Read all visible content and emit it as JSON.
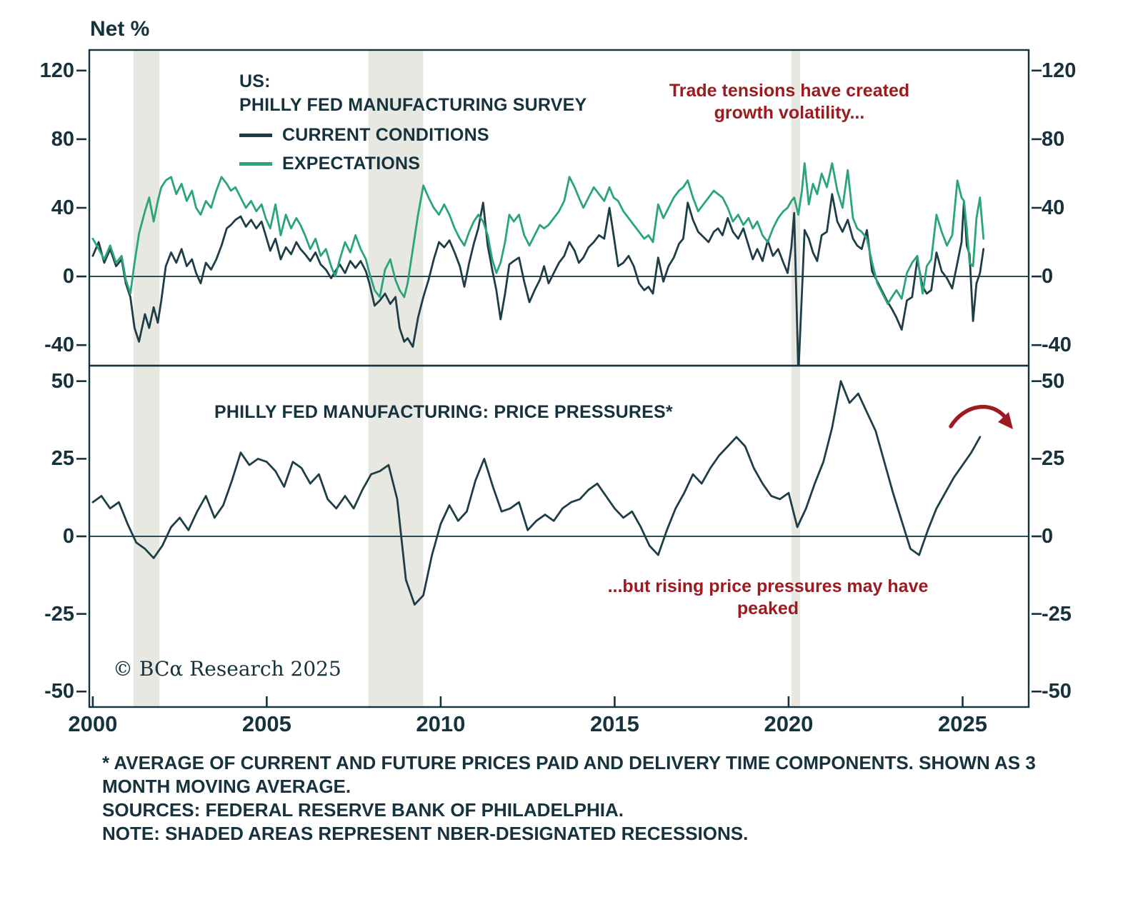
{
  "axis": {
    "unit_label": "Net %"
  },
  "colors": {
    "text_navy": "#16323d",
    "line_navy": "#1e3d47",
    "green": "#2aa47c",
    "red": "#9c1b20",
    "recession_band": "#e8e8e2",
    "axis": "#16323d",
    "background": "#ffffff"
  },
  "branding": "© BCα Research 2025",
  "x_axis": {
    "ticks": [
      2000,
      2005,
      2010,
      2015,
      2020,
      2025
    ]
  },
  "notes": [
    "* AVERAGE OF CURRENT AND FUTURE PRICES PAID AND DELIVERY TIME COMPONENTS. SHOWN AS 3",
    "MONTH MOVING AVERAGE.",
    "SOURCES: FEDERAL RESERVE BANK OF PHILADELPHIA.",
    "NOTE: SHADED AREAS REPRESENT NBER-DESIGNATED RECESSIONS."
  ],
  "chart_data": [
    {
      "type": "line",
      "title": "US: PHILLY FED MANUFACTURING SURVEY",
      "title_lines": [
        "US:",
        "PHILLY FED MANUFACTURING SURVEY"
      ],
      "annotation": "Trade tensions have created growth volatility...",
      "ylabel": "Net %",
      "ylim": [
        -52,
        132
      ],
      "yticks": [
        120,
        80,
        40,
        0,
        -40
      ],
      "xlim": [
        1999.9,
        2026.9
      ],
      "grid": false,
      "legend_position": "top-left-inside",
      "recession_bands": [
        [
          2001.17,
          2001.92
        ],
        [
          2007.92,
          2009.5
        ],
        [
          2020.08,
          2020.33
        ]
      ],
      "x": [
        2000.0,
        2000.17,
        2000.33,
        2000.5,
        2000.67,
        2000.83,
        2000.95,
        2001.08,
        2001.2,
        2001.33,
        2001.5,
        2001.62,
        2001.75,
        2001.87,
        2001.97,
        2002.1,
        2002.25,
        2002.4,
        2002.55,
        2002.7,
        2002.85,
        2002.97,
        2003.1,
        2003.25,
        2003.4,
        2003.55,
        2003.7,
        2003.85,
        2003.97,
        2004.1,
        2004.25,
        2004.4,
        2004.55,
        2004.7,
        2004.85,
        2004.97,
        2005.1,
        2005.25,
        2005.4,
        2005.55,
        2005.7,
        2005.85,
        2005.97,
        2006.1,
        2006.25,
        2006.4,
        2006.55,
        2006.7,
        2006.85,
        2006.97,
        2007.1,
        2007.25,
        2007.4,
        2007.55,
        2007.7,
        2007.85,
        2007.95,
        2008.1,
        2008.25,
        2008.4,
        2008.55,
        2008.7,
        2008.82,
        2008.95,
        2009.05,
        2009.2,
        2009.35,
        2009.5,
        2009.65,
        2009.8,
        2009.95,
        2010.1,
        2010.25,
        2010.4,
        2010.55,
        2010.68,
        2010.82,
        2010.95,
        2011.08,
        2011.22,
        2011.35,
        2011.48,
        2011.6,
        2011.72,
        2011.85,
        2011.97,
        2012.1,
        2012.25,
        2012.4,
        2012.55,
        2012.7,
        2012.85,
        2012.97,
        2013.1,
        2013.25,
        2013.4,
        2013.55,
        2013.7,
        2013.85,
        2013.97,
        2014.1,
        2014.25,
        2014.4,
        2014.55,
        2014.7,
        2014.85,
        2014.97,
        2015.1,
        2015.25,
        2015.4,
        2015.55,
        2015.7,
        2015.85,
        2015.97,
        2016.1,
        2016.25,
        2016.4,
        2016.55,
        2016.7,
        2016.85,
        2016.97,
        2017.1,
        2017.25,
        2017.4,
        2017.55,
        2017.7,
        2017.85,
        2017.97,
        2018.1,
        2018.25,
        2018.4,
        2018.55,
        2018.7,
        2018.85,
        2018.97,
        2019.1,
        2019.25,
        2019.4,
        2019.55,
        2019.7,
        2019.85,
        2019.97,
        2020.08,
        2020.16,
        2020.28,
        2020.38,
        2020.46,
        2020.58,
        2020.7,
        2020.82,
        2020.95,
        2021.1,
        2021.25,
        2021.4,
        2021.55,
        2021.7,
        2021.85,
        2021.97,
        2022.1,
        2022.25,
        2022.4,
        2022.55,
        2022.7,
        2022.85,
        2022.97,
        2023.1,
        2023.25,
        2023.4,
        2023.55,
        2023.7,
        2023.85,
        2023.97,
        2024.1,
        2024.25,
        2024.4,
        2024.55,
        2024.7,
        2024.85,
        2024.97,
        2025.04,
        2025.12,
        2025.2,
        2025.3,
        2025.4,
        2025.5,
        2025.6
      ],
      "series": [
        {
          "name": "CURRENT CONDITIONS",
          "color": "#1e3d47",
          "values": [
            12,
            20,
            8,
            16,
            6,
            10,
            -4,
            -12,
            -30,
            -38,
            -22,
            -30,
            -18,
            -27,
            -14,
            6,
            14,
            8,
            16,
            6,
            10,
            2,
            -4,
            8,
            4,
            10,
            18,
            28,
            30,
            33,
            35,
            29,
            33,
            28,
            32,
            24,
            15,
            22,
            10,
            17,
            13,
            20,
            16,
            13,
            9,
            14,
            7,
            4,
            -1,
            3,
            7,
            2,
            9,
            5,
            9,
            3,
            -4,
            -17,
            -14,
            -10,
            -16,
            -12,
            -30,
            -38,
            -36,
            -41,
            -24,
            -12,
            -2,
            10,
            20,
            17,
            21,
            14,
            6,
            -6,
            8,
            19,
            28,
            43,
            18,
            4,
            -8,
            -25,
            -10,
            7,
            9,
            11,
            -3,
            -15,
            -8,
            -2,
            6,
            -4,
            2,
            8,
            12,
            20,
            15,
            8,
            11,
            17,
            20,
            24,
            22,
            40,
            24,
            6,
            8,
            12,
            6,
            -4,
            -8,
            -6,
            -10,
            11,
            -3,
            6,
            11,
            19,
            22,
            43,
            33,
            26,
            23,
            20,
            26,
            28,
            24,
            34,
            26,
            22,
            28,
            18,
            10,
            16,
            9,
            21,
            12,
            16,
            8,
            2,
            17,
            37,
            -57,
            -10,
            27,
            22,
            14,
            9,
            24,
            26,
            48,
            32,
            26,
            33,
            22,
            18,
            16,
            27,
            3,
            -3,
            -9,
            -15,
            -19,
            -24,
            -31,
            -14,
            -12,
            10,
            -6,
            -10,
            -8,
            14,
            3,
            -1,
            -7,
            8,
            20,
            44,
            18,
            13,
            -26,
            -4,
            2,
            16
          ]
        },
        {
          "name": "EXPECTATIONS",
          "color": "#2aa47c",
          "values": [
            22,
            16,
            10,
            18,
            8,
            12,
            -2,
            -10,
            8,
            25,
            38,
            46,
            32,
            44,
            52,
            56,
            58,
            48,
            54,
            44,
            50,
            40,
            36,
            44,
            40,
            50,
            58,
            54,
            50,
            52,
            46,
            40,
            44,
            38,
            42,
            34,
            28,
            42,
            24,
            36,
            28,
            34,
            30,
            24,
            16,
            22,
            12,
            16,
            6,
            0,
            10,
            20,
            14,
            24,
            16,
            10,
            2,
            -8,
            -12,
            4,
            10,
            -2,
            -8,
            -12,
            -4,
            16,
            36,
            53,
            46,
            40,
            36,
            42,
            36,
            28,
            22,
            18,
            26,
            32,
            36,
            32,
            24,
            10,
            2,
            8,
            20,
            36,
            32,
            36,
            24,
            18,
            24,
            30,
            28,
            30,
            34,
            38,
            44,
            58,
            52,
            46,
            40,
            46,
            52,
            48,
            44,
            52,
            46,
            44,
            38,
            34,
            30,
            26,
            22,
            24,
            20,
            42,
            34,
            40,
            46,
            50,
            52,
            56,
            46,
            38,
            42,
            46,
            50,
            48,
            46,
            40,
            32,
            36,
            30,
            34,
            28,
            32,
            24,
            20,
            28,
            34,
            38,
            40,
            44,
            46,
            36,
            50,
            66,
            42,
            54,
            48,
            60,
            52,
            66,
            50,
            40,
            62,
            34,
            28,
            26,
            22,
            8,
            -4,
            -10,
            -16,
            -12,
            -8,
            -13,
            2,
            8,
            12,
            -10,
            6,
            10,
            36,
            26,
            18,
            24,
            56,
            46,
            44,
            28,
            8,
            6,
            34,
            46,
            22
          ]
        }
      ]
    },
    {
      "type": "line",
      "title": "PHILLY FED MANUFACTURING: PRICE PRESSURES*",
      "annotation": "...but rising price pressures may have peaked",
      "annotation_arrow": "red-curved-arrow-pointing-right-down",
      "ylim": [
        -55,
        55
      ],
      "yticks": [
        50,
        25,
        0,
        -25,
        -50
      ],
      "xlim": [
        1999.9,
        2026.9
      ],
      "grid": false,
      "series": [
        {
          "name": "PRICE PRESSURES (3-MONTH MOVING AVERAGE)",
          "color": "#1e3d47",
          "x": [
            2000.0,
            2000.25,
            2000.5,
            2000.75,
            2001.0,
            2001.25,
            2001.5,
            2001.75,
            2002.0,
            2002.25,
            2002.5,
            2002.75,
            2003.0,
            2003.25,
            2003.5,
            2003.75,
            2004.0,
            2004.25,
            2004.5,
            2004.75,
            2005.0,
            2005.25,
            2005.5,
            2005.75,
            2006.0,
            2006.25,
            2006.5,
            2006.75,
            2007.0,
            2007.25,
            2007.5,
            2007.75,
            2008.0,
            2008.25,
            2008.5,
            2008.75,
            2009.0,
            2009.25,
            2009.5,
            2009.75,
            2010.0,
            2010.25,
            2010.5,
            2010.75,
            2011.0,
            2011.25,
            2011.5,
            2011.75,
            2012.0,
            2012.25,
            2012.5,
            2012.75,
            2013.0,
            2013.25,
            2013.5,
            2013.75,
            2014.0,
            2014.25,
            2014.5,
            2014.75,
            2015.0,
            2015.25,
            2015.5,
            2015.75,
            2016.0,
            2016.25,
            2016.5,
            2016.75,
            2017.0,
            2017.25,
            2017.5,
            2017.75,
            2018.0,
            2018.25,
            2018.5,
            2018.75,
            2019.0,
            2019.25,
            2019.5,
            2019.75,
            2020.0,
            2020.25,
            2020.5,
            2020.75,
            2021.0,
            2021.25,
            2021.5,
            2021.75,
            2022.0,
            2022.25,
            2022.5,
            2022.75,
            2023.0,
            2023.25,
            2023.5,
            2023.75,
            2024.0,
            2024.25,
            2024.5,
            2024.75,
            2025.0,
            2025.25,
            2025.5
          ],
          "values": [
            11,
            13,
            9,
            11,
            4,
            -2,
            -4,
            -7,
            -3,
            3,
            6,
            2,
            8,
            13,
            6,
            10,
            18,
            27,
            23,
            25,
            24,
            21,
            16,
            24,
            22,
            17,
            20,
            12,
            9,
            13,
            9,
            15,
            20,
            21,
            23,
            12,
            -14,
            -22,
            -19,
            -6,
            4,
            10,
            5,
            8,
            18,
            25,
            16,
            8,
            9,
            11,
            2,
            5,
            7,
            5,
            9,
            11,
            12,
            15,
            17,
            13,
            9,
            6,
            8,
            3,
            -3,
            -6,
            2,
            9,
            14,
            20,
            17,
            22,
            26,
            29,
            32,
            29,
            22,
            17,
            13,
            12,
            14,
            3,
            9,
            17,
            24,
            35,
            50,
            43,
            46,
            40,
            34,
            24,
            14,
            5,
            -4,
            -6,
            2,
            9,
            14,
            19,
            23,
            27,
            32
          ]
        }
      ]
    }
  ]
}
